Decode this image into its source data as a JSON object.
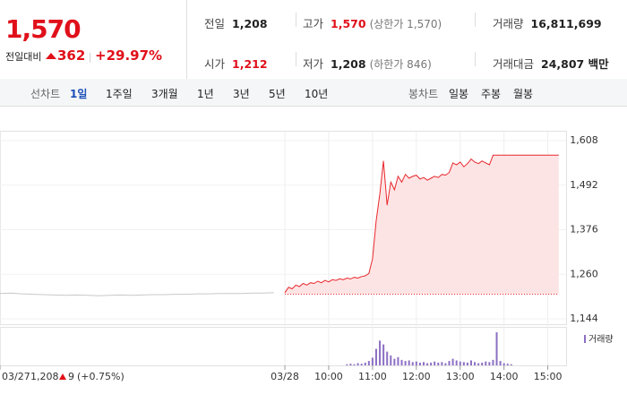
{
  "header": {
    "price": "1,570",
    "change_label": "전일대비",
    "change": "362",
    "change_pct": "+29.97%"
  },
  "stats": [
    [
      {
        "label": "전일",
        "value": "1,208"
      },
      {
        "label": "고가",
        "value": "1,570",
        "color": "#e0101a",
        "note": "(상한가 1,570)"
      },
      {
        "label": "거래량",
        "value": "16,811,699"
      }
    ],
    [
      {
        "label": "시가",
        "value": "1,212",
        "color": "#e0101a"
      },
      {
        "label": "저가",
        "value": "1,208",
        "note": "(하한가 846)"
      },
      {
        "label": "거래대금",
        "value": "24,807 백만"
      }
    ]
  ],
  "tabs": {
    "line_label": "선차트",
    "line": [
      "1일",
      "1주일",
      "3개월",
      "1년",
      "3년",
      "5년",
      "10년"
    ],
    "selected": 0,
    "candle_label": "봉차트",
    "candle": [
      "일봉",
      "주봉",
      "월봉"
    ]
  },
  "chart_data": {
    "type": "line",
    "xlim": [
      0,
      155
    ],
    "ylim": [
      1144,
      1608
    ],
    "yticks": [
      {
        "value": 1144,
        "label": "1,144"
      },
      {
        "value": 1260,
        "label": "1,260"
      },
      {
        "value": 1376,
        "label": "1,376"
      },
      {
        "value": 1492,
        "label": "1,492"
      },
      {
        "value": 1608,
        "label": "1,608"
      }
    ],
    "xticks": [
      {
        "value": 0,
        "label": "03/27"
      },
      {
        "value": 78,
        "label": "03/28"
      },
      {
        "value": 90,
        "label": "10:00"
      },
      {
        "value": 102,
        "label": "11:00"
      },
      {
        "value": 114,
        "label": "12:00"
      },
      {
        "value": 126,
        "label": "13:00"
      },
      {
        "value": 138,
        "label": "14:00"
      },
      {
        "value": 150,
        "label": "15:00"
      }
    ],
    "reference_line": 1208,
    "series": [
      {
        "color": "#c8c8c8",
        "x": [
          0,
          3,
          6,
          9,
          12,
          15,
          18,
          21,
          24,
          27,
          30,
          33,
          36,
          39,
          42,
          45,
          48,
          51,
          54,
          57,
          60,
          63,
          66,
          69,
          72,
          75
        ],
        "values": [
          1210,
          1211,
          1209,
          1208,
          1207,
          1206,
          1205,
          1206,
          1205,
          1204,
          1205,
          1206,
          1205,
          1206,
          1207,
          1207,
          1208,
          1208,
          1209,
          1209,
          1210,
          1210,
          1210,
          1211,
          1211,
          1212
        ]
      },
      {
        "color": "#e8282e",
        "fill": "#fde4e4",
        "x": [
          78,
          79,
          80,
          81,
          82,
          83,
          84,
          85,
          86,
          87,
          88,
          89,
          90,
          91,
          92,
          93,
          94,
          95,
          96,
          97,
          98,
          99,
          100,
          101,
          102,
          103,
          104,
          105,
          106,
          107,
          108,
          109,
          110,
          111,
          112,
          113,
          114,
          115,
          116,
          117,
          118,
          119,
          120,
          121,
          122,
          123,
          124,
          125,
          126,
          127,
          128,
          129,
          130,
          131,
          132,
          133,
          134,
          135,
          136,
          140,
          145,
          150,
          153
        ],
        "values": [
          1212,
          1226,
          1222,
          1232,
          1228,
          1236,
          1232,
          1238,
          1236,
          1242,
          1238,
          1244,
          1240,
          1246,
          1244,
          1248,
          1246,
          1250,
          1248,
          1252,
          1250,
          1254,
          1256,
          1262,
          1300,
          1400,
          1470,
          1555,
          1440,
          1500,
          1480,
          1515,
          1500,
          1520,
          1510,
          1515,
          1518,
          1508,
          1512,
          1505,
          1510,
          1515,
          1512,
          1520,
          1518,
          1525,
          1550,
          1545,
          1552,
          1540,
          1548,
          1560,
          1552,
          1548,
          1555,
          1550,
          1545,
          1570,
          1570,
          1570,
          1570,
          1570,
          1570
        ]
      }
    ],
    "volume": {
      "name": "거래량",
      "color": "#8c6fc4",
      "ylim": [
        0,
        65
      ],
      "x": [
        95,
        96,
        97,
        98,
        99,
        100,
        101,
        102,
        103,
        104,
        105,
        106,
        107,
        108,
        109,
        110,
        111,
        112,
        113,
        114,
        115,
        116,
        117,
        118,
        119,
        120,
        121,
        122,
        123,
        124,
        125,
        126,
        127,
        128,
        129,
        130,
        131,
        132,
        133,
        134,
        135,
        136,
        137,
        138,
        139,
        140
      ],
      "values": [
        2,
        3,
        2,
        4,
        3,
        5,
        8,
        14,
        30,
        45,
        38,
        25,
        18,
        12,
        15,
        10,
        8,
        9,
        6,
        7,
        5,
        6,
        4,
        5,
        7,
        5,
        6,
        4,
        8,
        12,
        9,
        7,
        6,
        5,
        9,
        6,
        4,
        5,
        7,
        6,
        10,
        60,
        8,
        4,
        3,
        2
      ]
    }
  },
  "footer": {
    "date": "03/27",
    "close": "1,208",
    "change": "9",
    "change_pct": "(+0.75%)"
  }
}
